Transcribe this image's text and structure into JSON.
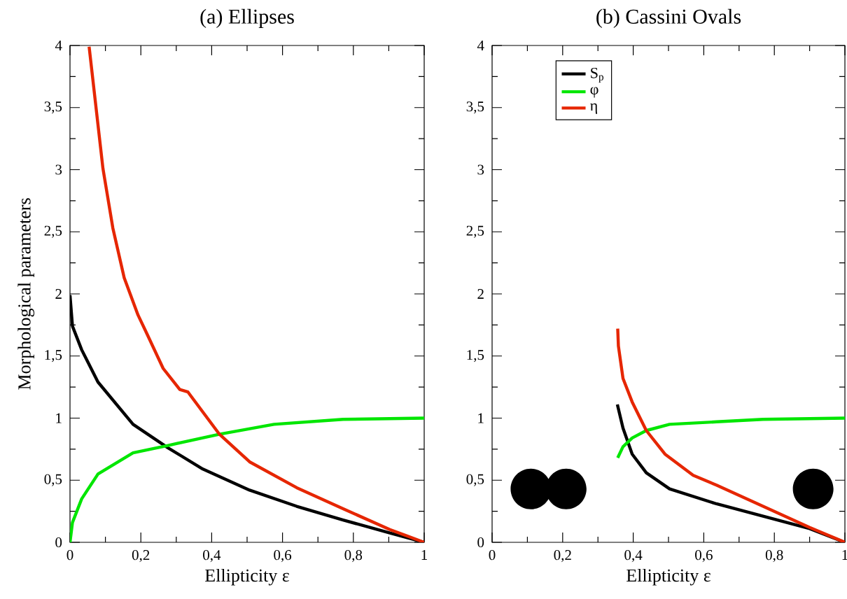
{
  "chart_data": [
    {
      "type": "line",
      "title": "(a) Ellipses",
      "xlabel": "Ellipticity ε",
      "ylabel": "Morphological parameters",
      "xlim": [
        0,
        1
      ],
      "ylim": [
        0,
        4
      ],
      "xticks": [
        0,
        {
          "value": 0.1,
          "label": null
        },
        {
          "value": 0.2,
          "label": "0,2"
        },
        {
          "value": 0.3,
          "label": null
        },
        {
          "value": 0.4,
          "label": "0,4"
        },
        {
          "value": 0.5,
          "label": null
        },
        {
          "value": 0.6,
          "label": "0,6"
        },
        {
          "value": 0.7,
          "label": null
        },
        {
          "value": 0.8,
          "label": "0,8"
        },
        {
          "value": 0.9,
          "label": null
        },
        1
      ],
      "yticks": [
        0,
        {
          "value": 0.25,
          "label": null
        },
        {
          "value": 0.5,
          "label": "0,5"
        },
        {
          "value": 0.75,
          "label": null
        },
        1,
        {
          "value": 1.25,
          "label": null
        },
        {
          "value": 1.5,
          "label": "1,5"
        },
        {
          "value": 1.75,
          "label": null
        },
        2,
        {
          "value": 2.25,
          "label": null
        },
        {
          "value": 2.5,
          "label": "2,5"
        },
        {
          "value": 2.75,
          "label": null
        },
        3,
        {
          "value": 3.25,
          "label": null
        },
        {
          "value": 3.5,
          "label": "3,5"
        },
        {
          "value": 3.75,
          "label": null
        },
        4
      ],
      "series": [
        {
          "color": "#000000",
          "x": [
            0,
            0.007,
            0.033,
            0.079,
            0.178,
            0.277,
            0.375,
            0.507,
            0.64,
            0.771,
            0.903,
            1
          ],
          "values": [
            1.99,
            1.74,
            1.55,
            1.29,
            0.95,
            0.76,
            0.59,
            0.42,
            0.29,
            0.18,
            0.075,
            0
          ]
        },
        {
          "color": "#00e600",
          "x": [
            0,
            0.007,
            0.033,
            0.079,
            0.178,
            0.277,
            0.421,
            0.576,
            0.771,
            1
          ],
          "values": [
            0,
            0.16,
            0.35,
            0.55,
            0.72,
            0.78,
            0.87,
            0.95,
            0.99,
            1.0
          ]
        },
        {
          "color": "#e62600",
          "x": [
            0.054,
            0.093,
            0.121,
            0.153,
            0.192,
            0.217,
            0.263,
            0.31,
            0.333,
            0.421,
            0.507,
            0.64,
            0.771,
            0.903,
            1
          ],
          "values": [
            3.99,
            3.01,
            2.53,
            2.13,
            1.83,
            1.68,
            1.4,
            1.23,
            1.21,
            0.873,
            0.648,
            0.44,
            0.27,
            0.103,
            0
          ]
        }
      ]
    },
    {
      "type": "line",
      "title": "(b) Cassini Ovals",
      "xlabel": "Ellipticity ε",
      "xlim": [
        0,
        1
      ],
      "ylim": [
        0,
        4
      ],
      "legend": "top left",
      "xticks": [
        0,
        {
          "value": 0.1,
          "label": null
        },
        {
          "value": 0.2,
          "label": "0,2"
        },
        {
          "value": 0.3,
          "label": null
        },
        {
          "value": 0.4,
          "label": "0,4"
        },
        {
          "value": 0.5,
          "label": null
        },
        {
          "value": 0.6,
          "label": "0,6"
        },
        {
          "value": 0.7,
          "label": null
        },
        {
          "value": 0.8,
          "label": "0,8"
        },
        {
          "value": 0.9,
          "label": null
        },
        1
      ],
      "yticks": [
        0,
        {
          "value": 0.25,
          "label": null
        },
        {
          "value": 0.5,
          "label": "0,5"
        },
        {
          "value": 0.75,
          "label": null
        },
        1,
        {
          "value": 1.25,
          "label": null
        },
        {
          "value": 1.5,
          "label": "1,5"
        },
        {
          "value": 1.75,
          "label": null
        },
        2,
        {
          "value": 2.25,
          "label": null
        },
        {
          "value": 2.5,
          "label": "2,5"
        },
        {
          "value": 2.75,
          "label": null
        },
        3,
        {
          "value": 3.25,
          "label": null
        },
        {
          "value": 3.5,
          "label": "3,5"
        },
        {
          "value": 3.75,
          "label": null
        },
        4
      ],
      "series": [
        {
          "name": "S$_{p}$",
          "color": "#000000",
          "x": [
            0.355,
            0.371,
            0.397,
            0.437,
            0.503,
            0.636,
            0.768,
            0.9,
            1
          ],
          "values": [
            1.11,
            0.92,
            0.71,
            0.56,
            0.43,
            0.31,
            0.21,
            0.11,
            0
          ]
        },
        {
          "name": "φ",
          "color": "#00e600",
          "x": [
            0.356,
            0.371,
            0.397,
            0.437,
            0.503,
            0.636,
            0.768,
            1
          ],
          "values": [
            0.68,
            0.77,
            0.84,
            0.9,
            0.95,
            0.97,
            0.99,
            1.0
          ]
        },
        {
          "name": "η",
          "color": "#e62600",
          "x": [
            0.356,
            0.358,
            0.371,
            0.397,
            0.437,
            0.49,
            0.57,
            0.636,
            0.768,
            0.9,
            1
          ],
          "values": [
            1.72,
            1.58,
            1.32,
            1.13,
            0.9,
            0.71,
            0.54,
            0.46,
            0.29,
            0.12,
            0
          ]
        }
      ]
    }
  ]
}
